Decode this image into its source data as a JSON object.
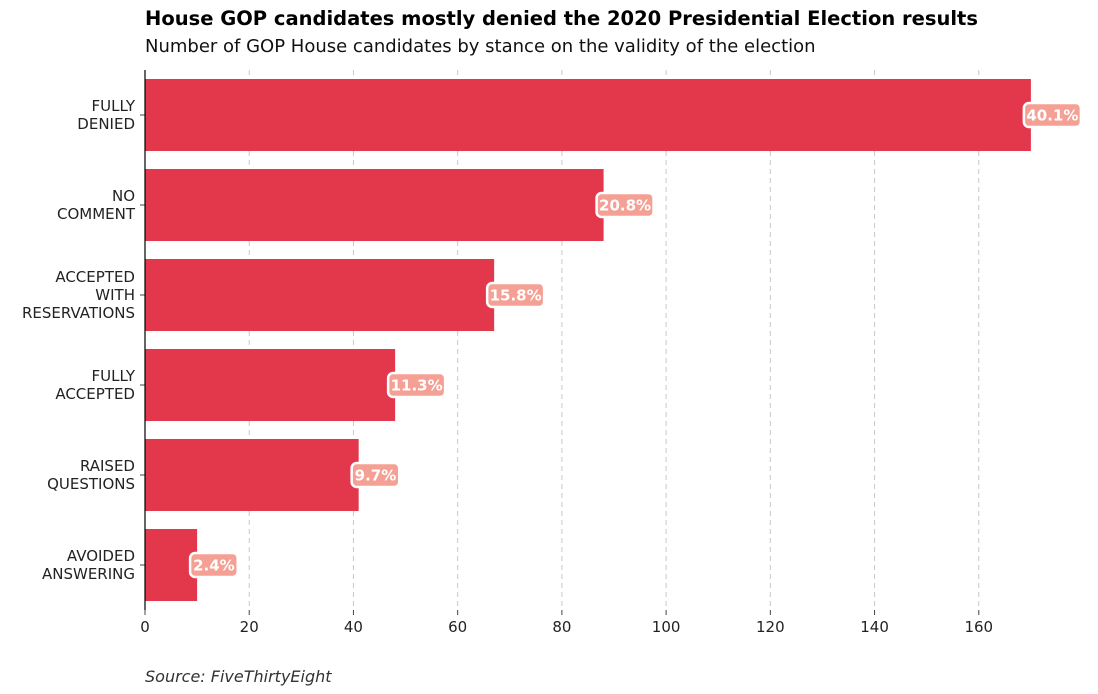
{
  "title": "House GOP candidates mostly denied the 2020 Presidential Election results",
  "subtitle": "Number of GOP House candidates by stance on the validity of the election",
  "source": "Source: FiveThirtyEight",
  "colors": {
    "bar": "#e3374b",
    "label_box": "#f5a095",
    "label_border": "#ffffff",
    "grid": "#c8c8c8",
    "axis": "#000000"
  },
  "chart_data": {
    "type": "bar",
    "orientation": "horizontal",
    "categories": [
      [
        "FULLY",
        "DENIED"
      ],
      [
        "NO",
        "COMMENT"
      ],
      [
        "ACCEPTED",
        "WITH",
        "RESERVATIONS"
      ],
      [
        "FULLY",
        "ACCEPTED"
      ],
      [
        "RAISED",
        "QUESTIONS"
      ],
      [
        "AVOIDED",
        "ANSWERING"
      ]
    ],
    "values": [
      170,
      88,
      67,
      48,
      41,
      10
    ],
    "data_labels": [
      "40.1%",
      "20.8%",
      "15.8%",
      "11.3%",
      "9.7%",
      "2.4%"
    ],
    "xlim": [
      0,
      180
    ],
    "xticks": [
      0,
      20,
      40,
      60,
      80,
      100,
      120,
      140,
      160
    ],
    "xlabel": "",
    "ylabel": "",
    "grid": "x-dashed",
    "legend": "none"
  }
}
